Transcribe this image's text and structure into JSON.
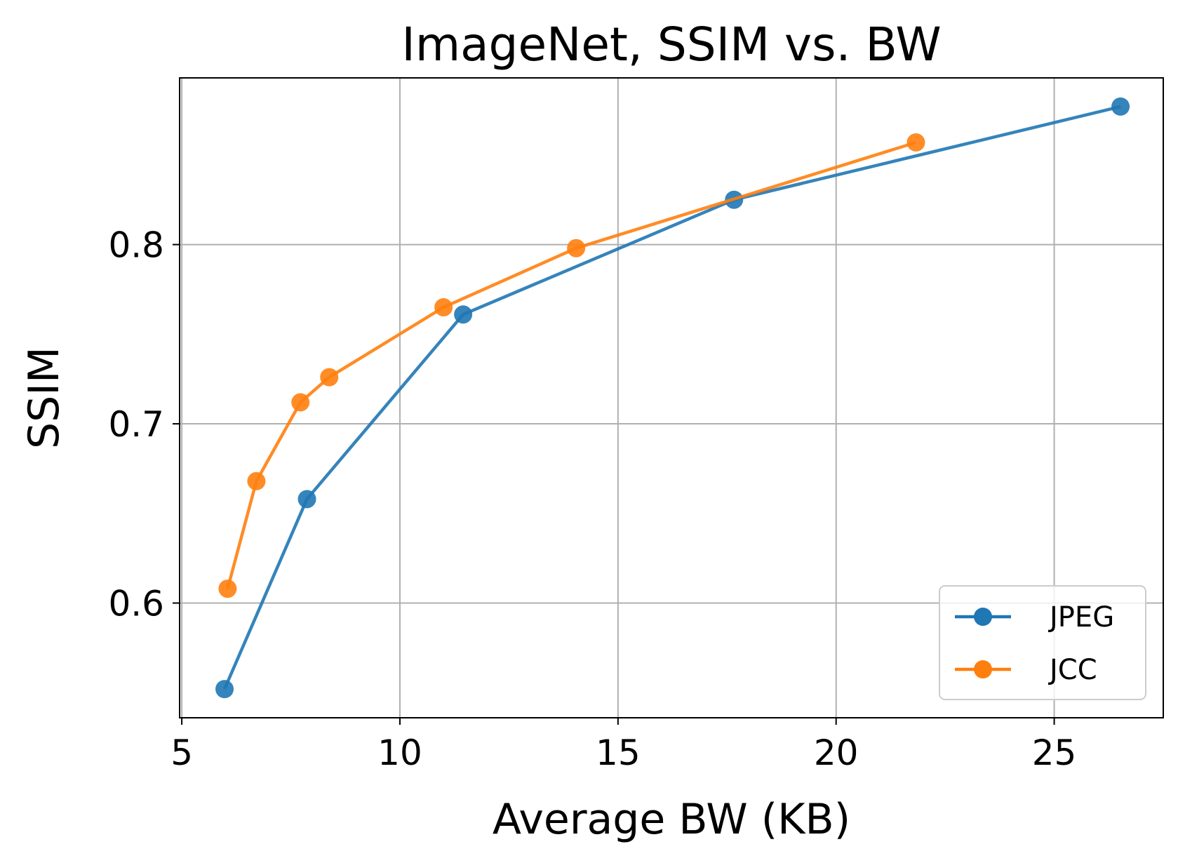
{
  "chart_data": {
    "type": "line",
    "title": "ImageNet, SSIM vs. BW",
    "xlabel": "Average BW (KB)",
    "ylabel": "SSIM",
    "xlim": [
      4.95,
      27.5
    ],
    "ylim": [
      0.536,
      0.893
    ],
    "xticks": [
      5,
      10,
      15,
      20,
      25
    ],
    "yticks": [
      0.6,
      0.7,
      0.8
    ],
    "xtick_labels": [
      "5",
      "10",
      "15",
      "20",
      "25"
    ],
    "ytick_labels": [
      "0.6",
      "0.7",
      "0.8"
    ],
    "grid": true,
    "legend_position": "lower-right",
    "series": [
      {
        "name": "JPEG",
        "color": "#1f77b4",
        "x": [
          5.98,
          7.87,
          11.45,
          17.66,
          26.52
        ],
        "y": [
          0.552,
          0.658,
          0.761,
          0.825,
          0.877
        ]
      },
      {
        "name": "JCC",
        "color": "#ff7f0e",
        "x": [
          6.05,
          6.71,
          7.72,
          8.38,
          11.0,
          14.04,
          21.83
        ],
        "y": [
          0.608,
          0.668,
          0.712,
          0.726,
          0.765,
          0.798,
          0.857
        ]
      }
    ]
  }
}
